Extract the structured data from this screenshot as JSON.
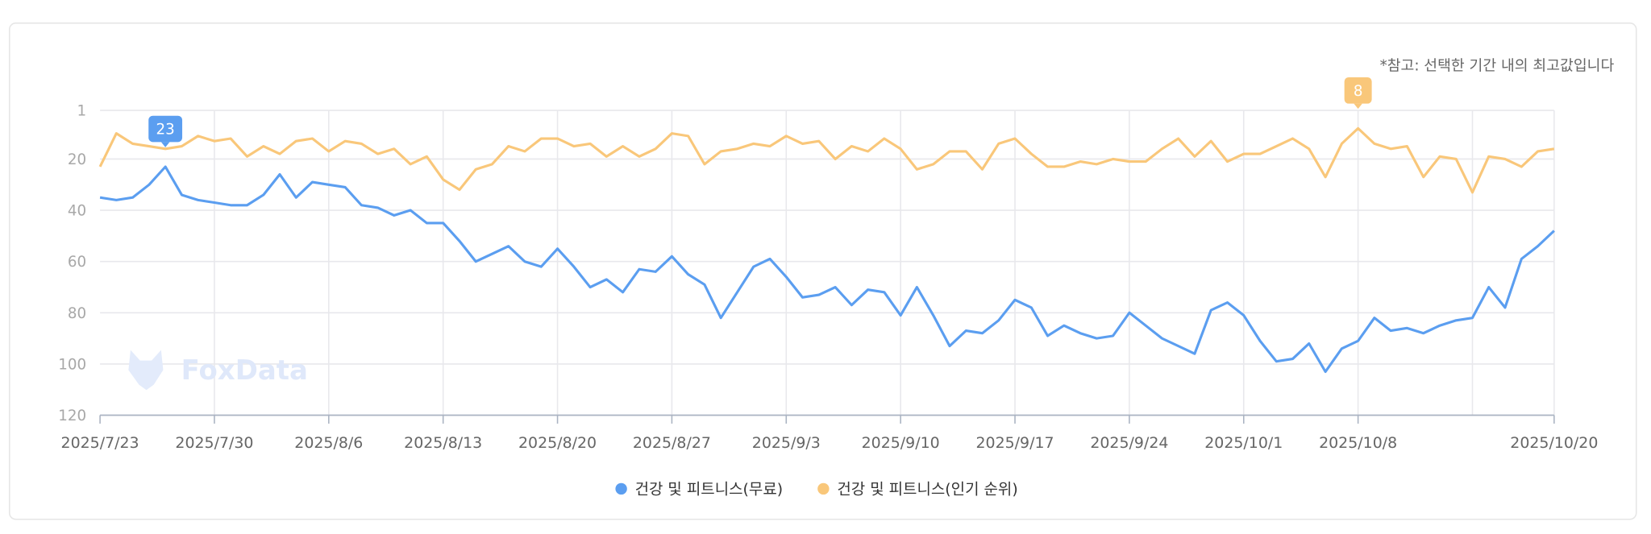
{
  "note": "*참고: 선택한 기간 내의 최고값입니다",
  "watermark": "FoxData",
  "chart_data": {
    "type": "line",
    "title": "",
    "xlabel": "",
    "ylabel": "",
    "y_inverted": true,
    "ylim": [
      1,
      120
    ],
    "y_ticks": [
      1,
      20,
      40,
      60,
      80,
      100,
      120
    ],
    "start_date": "2025/7/23",
    "x_tick_labels": [
      {
        "day": 0,
        "label": "2025/7/23"
      },
      {
        "day": 7,
        "label": "2025/7/30"
      },
      {
        "day": 14,
        "label": "2025/8/6"
      },
      {
        "day": 21,
        "label": "2025/8/13"
      },
      {
        "day": 28,
        "label": "2025/8/20"
      },
      {
        "day": 35,
        "label": "2025/8/27"
      },
      {
        "day": 42,
        "label": "2025/9/3"
      },
      {
        "day": 49,
        "label": "2025/9/10"
      },
      {
        "day": 56,
        "label": "2025/9/17"
      },
      {
        "day": 63,
        "label": "2025/9/24"
      },
      {
        "day": 70,
        "label": "2025/10/1"
      },
      {
        "day": 77,
        "label": "2025/10/8"
      },
      {
        "day": 89,
        "label": "2025/10/20"
      }
    ],
    "extra_gridline_days": [
      84
    ],
    "grid": true,
    "legend_position": "bottom-center",
    "series": [
      {
        "name": "건강 및 피트니스(무료)",
        "color": "#5b9ef0",
        "peak_label": "23",
        "peak_index": 4,
        "values": [
          35,
          36,
          35,
          30,
          23,
          34,
          36,
          37,
          38,
          38,
          34,
          26,
          35,
          29,
          30,
          31,
          38,
          39,
          42,
          40,
          45,
          45,
          52,
          60,
          57,
          54,
          60,
          62,
          55,
          62,
          70,
          67,
          72,
          63,
          64,
          58,
          65,
          69,
          82,
          72,
          62,
          59,
          66,
          74,
          73,
          70,
          77,
          71,
          72,
          81,
          70,
          81,
          93,
          87,
          88,
          83,
          75,
          78,
          89,
          85,
          88,
          90,
          89,
          80,
          85,
          90,
          93,
          96,
          79,
          76,
          81,
          91,
          99,
          98,
          92,
          103,
          94,
          91,
          82,
          87,
          86,
          88,
          85,
          83,
          82,
          70,
          78,
          59,
          54,
          48
        ]
      },
      {
        "name": "건강 및 피트니스(인기 순위)",
        "color": "#f9c77a",
        "peak_label": "8",
        "peak_index": 77,
        "values": [
          23,
          10,
          14,
          15,
          16,
          15,
          11,
          13,
          12,
          19,
          15,
          18,
          13,
          12,
          17,
          13,
          14,
          18,
          16,
          22,
          19,
          28,
          32,
          24,
          22,
          15,
          17,
          12,
          12,
          15,
          14,
          19,
          15,
          19,
          16,
          10,
          11,
          22,
          17,
          16,
          14,
          15,
          11,
          14,
          13,
          20,
          15,
          17,
          12,
          16,
          24,
          22,
          17,
          17,
          24,
          14,
          12,
          18,
          23,
          23,
          21,
          22,
          20,
          21,
          21,
          16,
          12,
          19,
          13,
          21,
          18,
          18,
          15,
          12,
          16,
          27,
          14,
          8,
          14,
          16,
          15,
          27,
          19,
          20,
          33,
          19,
          20,
          23,
          17,
          16
        ]
      }
    ]
  }
}
